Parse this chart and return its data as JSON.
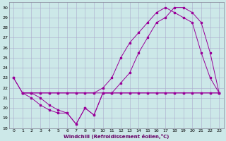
{
  "xlabel": "Windchill (Refroidissement éolien,°C)",
  "bg_color": "#cce8e8",
  "grid_color": "#aaaacc",
  "line_color": "#990099",
  "ylim": [
    18,
    30.5
  ],
  "xlim": [
    -0.5,
    23.5
  ],
  "yticks": [
    18,
    19,
    20,
    21,
    22,
    23,
    24,
    25,
    26,
    27,
    28,
    29,
    30
  ],
  "xticks": [
    0,
    1,
    2,
    3,
    4,
    5,
    6,
    7,
    8,
    9,
    10,
    11,
    12,
    13,
    14,
    15,
    16,
    17,
    18,
    19,
    20,
    21,
    22,
    23
  ],
  "series1_x": [
    0,
    1,
    2,
    3,
    4,
    5,
    6,
    7,
    8,
    9,
    10,
    11,
    12,
    13,
    14,
    15,
    16,
    17,
    18,
    19,
    20,
    21,
    22,
    23
  ],
  "series1_y": [
    23,
    21.5,
    21.5,
    21.5,
    21.5,
    21.5,
    21.5,
    21.5,
    21.5,
    21.5,
    21.5,
    21.5,
    21.5,
    21.5,
    21.5,
    21.5,
    21.5,
    21.5,
    21.5,
    21.5,
    21.5,
    21.5,
    21.5,
    21.5
  ],
  "series2_x": [
    0,
    1,
    2,
    3,
    4,
    5,
    6,
    7,
    8,
    9,
    10,
    11,
    12,
    13,
    14,
    15,
    16,
    17,
    18,
    19,
    20,
    21,
    22,
    23
  ],
  "series2_y": [
    23,
    21.5,
    21.5,
    21.5,
    21.5,
    21.5,
    21.5,
    21.5,
    21.5,
    21.5,
    22.0,
    23.0,
    25.0,
    26.5,
    27.5,
    28.5,
    29.5,
    30.0,
    29.5,
    29.0,
    28.5,
    25.5,
    23.0,
    21.5
  ],
  "series3_x": [
    1,
    2,
    3,
    4,
    5,
    6,
    7,
    8,
    9,
    10,
    11,
    12,
    13,
    14,
    15,
    16,
    17,
    18,
    19,
    20,
    21,
    22,
    23
  ],
  "series3_y": [
    21.5,
    21.5,
    21.0,
    20.3,
    19.8,
    19.5,
    18.4,
    20.0,
    19.3,
    21.5,
    21.5,
    22.5,
    23.5,
    25.5,
    27.0,
    28.5,
    29.0,
    30.0,
    30.0,
    29.5,
    28.5,
    25.5,
    21.5
  ],
  "series4_x": [
    1,
    2,
    3,
    4,
    5,
    6,
    7,
    8,
    9,
    10,
    11,
    12,
    13,
    14,
    15,
    16,
    17,
    18,
    19,
    20,
    21,
    22,
    23
  ],
  "series4_y": [
    21.5,
    21.0,
    20.3,
    19.8,
    19.5,
    19.5,
    18.4,
    20.0,
    19.3,
    21.5,
    21.5,
    21.5,
    21.5,
    21.5,
    21.5,
    21.5,
    21.5,
    21.5,
    21.5,
    21.5,
    21.5,
    21.5,
    21.5
  ]
}
